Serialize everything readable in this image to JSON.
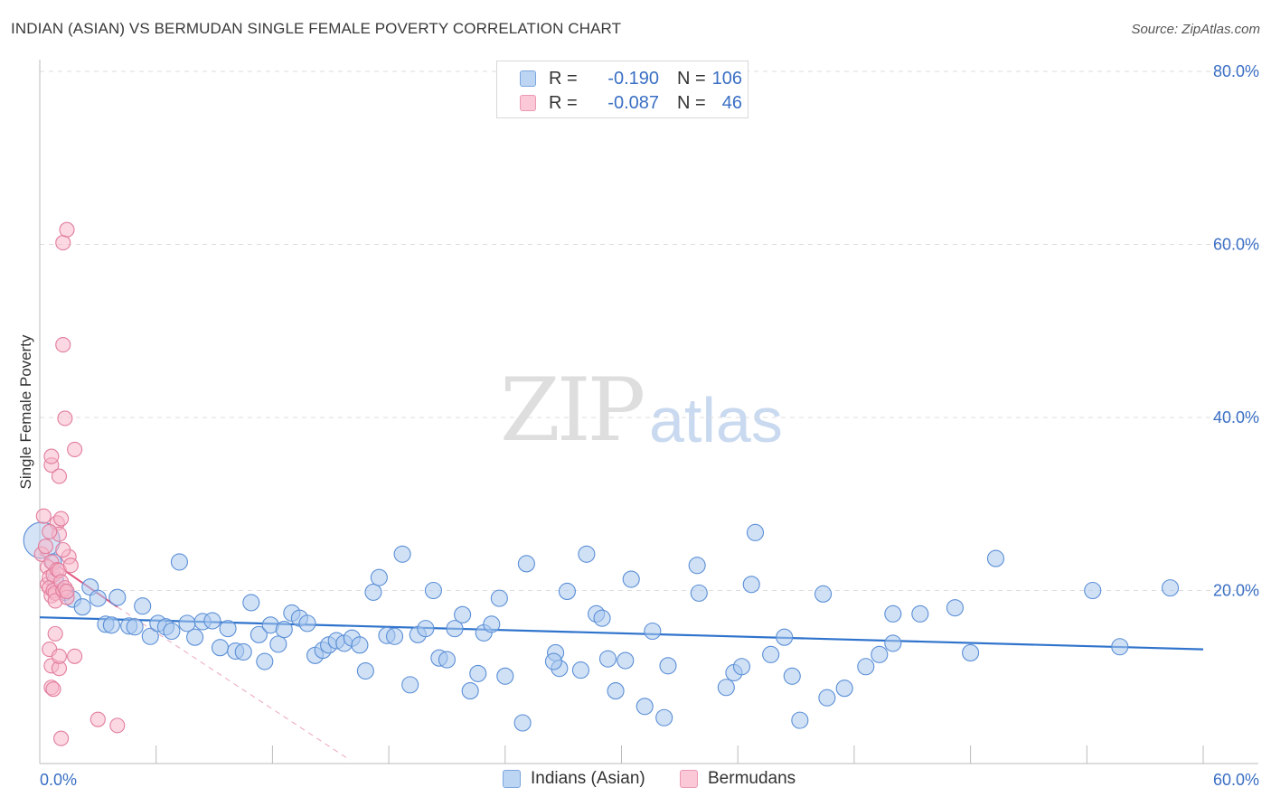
{
  "header": {
    "title": "INDIAN (ASIAN) VS BERMUDAN SINGLE FEMALE POVERTY CORRELATION CHART",
    "source": "Source: ZipAtlas.com"
  },
  "watermark": {
    "zip": "ZIP",
    "atlas": "atlas"
  },
  "legend": {
    "rows": [
      {
        "r_label": "R =",
        "r_value": "-0.190",
        "n_label": "N =",
        "n_value": "106"
      },
      {
        "r_label": "R =",
        "r_value": "-0.087",
        "n_label": "N =",
        "n_value": "46"
      }
    ]
  },
  "colors": {
    "blue_fill": "#aac8ee",
    "blue_stroke": "#5b8fd6",
    "blue_line": "#2f73cc",
    "pink_fill": "#f7b8cb",
    "pink_stroke": "#e27d9d",
    "pink_line": "#e0557e",
    "grid": "#dddddd",
    "axis_text": "#3a6fc4"
  },
  "chart_data": {
    "type": "scatter",
    "title": "INDIAN (ASIAN) VS BERMUDAN SINGLE FEMALE POVERTY CORRELATION CHART",
    "xlabel": "",
    "ylabel": "Single Female Poverty",
    "xlim": [
      0,
      60
    ],
    "ylim": [
      0,
      80
    ],
    "x_tick_labels": [
      "0.0%",
      "60.0%"
    ],
    "y_tick_labels": [
      "20.0%",
      "40.0%",
      "60.0%",
      "80.0%"
    ],
    "y_ticks": [
      20,
      40,
      60,
      80
    ],
    "grid": true,
    "series": [
      {
        "name": "Indians (Asian)",
        "r": -0.19,
        "n": 106,
        "trend": {
          "x": [
            0,
            60
          ],
          "y": [
            16.9,
            13.2
          ]
        },
        "points": [
          [
            0.1,
            25.8
          ],
          [
            0.7,
            23.3
          ],
          [
            0.8,
            21.2
          ],
          [
            1.3,
            19.8
          ],
          [
            1.7,
            19.0
          ],
          [
            2.2,
            18.1
          ],
          [
            2.6,
            20.4
          ],
          [
            3.0,
            19.1
          ],
          [
            3.4,
            16.1
          ],
          [
            3.7,
            16.0
          ],
          [
            4.0,
            19.2
          ],
          [
            4.6,
            15.9
          ],
          [
            4.9,
            15.8
          ],
          [
            5.3,
            18.2
          ],
          [
            5.7,
            14.7
          ],
          [
            6.1,
            16.2
          ],
          [
            6.5,
            15.8
          ],
          [
            6.8,
            15.3
          ],
          [
            7.2,
            23.3
          ],
          [
            7.6,
            16.2
          ],
          [
            8.0,
            14.6
          ],
          [
            8.4,
            16.4
          ],
          [
            8.9,
            16.5
          ],
          [
            9.3,
            13.4
          ],
          [
            9.7,
            15.6
          ],
          [
            10.1,
            13.0
          ],
          [
            10.5,
            12.9
          ],
          [
            10.9,
            18.6
          ],
          [
            11.3,
            14.9
          ],
          [
            11.6,
            11.8
          ],
          [
            11.9,
            16.0
          ],
          [
            12.3,
            13.8
          ],
          [
            12.6,
            15.5
          ],
          [
            13.0,
            17.4
          ],
          [
            13.4,
            16.8
          ],
          [
            13.8,
            16.2
          ],
          [
            14.2,
            12.5
          ],
          [
            14.6,
            13.1
          ],
          [
            14.9,
            13.7
          ],
          [
            15.3,
            14.2
          ],
          [
            15.7,
            13.9
          ],
          [
            16.1,
            14.5
          ],
          [
            16.5,
            13.7
          ],
          [
            16.8,
            10.7
          ],
          [
            17.2,
            19.8
          ],
          [
            17.5,
            21.5
          ],
          [
            17.9,
            14.8
          ],
          [
            18.3,
            14.7
          ],
          [
            18.7,
            24.2
          ],
          [
            19.1,
            9.1
          ],
          [
            19.5,
            14.9
          ],
          [
            19.9,
            15.6
          ],
          [
            20.3,
            20.0
          ],
          [
            20.6,
            12.2
          ],
          [
            21.0,
            12.0
          ],
          [
            21.4,
            15.6
          ],
          [
            21.8,
            17.2
          ],
          [
            22.2,
            8.4
          ],
          [
            22.6,
            10.4
          ],
          [
            22.9,
            15.1
          ],
          [
            23.3,
            16.1
          ],
          [
            23.7,
            19.1
          ],
          [
            24.0,
            10.1
          ],
          [
            24.9,
            4.7
          ],
          [
            25.1,
            23.1
          ],
          [
            26.6,
            12.8
          ],
          [
            26.8,
            11.0
          ],
          [
            27.2,
            19.9
          ],
          [
            27.9,
            10.8
          ],
          [
            28.2,
            24.2
          ],
          [
            28.7,
            17.3
          ],
          [
            29.0,
            16.8
          ],
          [
            29.3,
            12.1
          ],
          [
            29.7,
            8.4
          ],
          [
            30.2,
            11.9
          ],
          [
            30.5,
            21.3
          ],
          [
            31.2,
            6.6
          ],
          [
            31.6,
            15.3
          ],
          [
            32.2,
            5.3
          ],
          [
            32.4,
            11.3
          ],
          [
            33.9,
            22.9
          ],
          [
            34.0,
            19.7
          ],
          [
            35.4,
            8.8
          ],
          [
            35.8,
            10.5
          ],
          [
            36.2,
            11.2
          ],
          [
            36.7,
            20.7
          ],
          [
            36.9,
            26.7
          ],
          [
            37.7,
            12.6
          ],
          [
            38.4,
            14.6
          ],
          [
            38.8,
            10.1
          ],
          [
            39.2,
            5.0
          ],
          [
            40.4,
            19.6
          ],
          [
            40.6,
            7.6
          ],
          [
            41.5,
            8.7
          ],
          [
            42.6,
            11.2
          ],
          [
            43.3,
            12.6
          ],
          [
            44.0,
            13.9
          ],
          [
            44.0,
            17.3
          ],
          [
            45.4,
            17.3
          ],
          [
            47.2,
            18.0
          ],
          [
            48.0,
            12.8
          ],
          [
            49.3,
            23.7
          ],
          [
            54.3,
            20.0
          ],
          [
            55.7,
            13.5
          ],
          [
            58.3,
            20.3
          ],
          [
            26.5,
            11.8
          ]
        ]
      },
      {
        "name": "Bermudans",
        "r": -0.087,
        "n": 46,
        "trend": {
          "x": [
            0,
            4.0
          ],
          "y": [
            24.3,
            18.1
          ]
        },
        "trend_extension": {
          "x": [
            4.0,
            16.0
          ],
          "y": [
            18.1,
            0.4
          ]
        },
        "points": [
          [
            0.1,
            24.2
          ],
          [
            0.2,
            28.6
          ],
          [
            0.3,
            25.1
          ],
          [
            0.4,
            22.7
          ],
          [
            0.4,
            20.7
          ],
          [
            0.5,
            21.5
          ],
          [
            0.5,
            20.3
          ],
          [
            0.6,
            19.4
          ],
          [
            0.6,
            23.3
          ],
          [
            0.7,
            21.8
          ],
          [
            0.7,
            20.0
          ],
          [
            0.8,
            19.7
          ],
          [
            0.8,
            18.8
          ],
          [
            0.9,
            22.4
          ],
          [
            0.9,
            27.8
          ],
          [
            1.0,
            26.5
          ],
          [
            1.0,
            22.3
          ],
          [
            1.1,
            21.0
          ],
          [
            1.2,
            20.0
          ],
          [
            1.3,
            20.3
          ],
          [
            1.4,
            19.2
          ],
          [
            1.5,
            23.9
          ],
          [
            1.6,
            22.9
          ],
          [
            0.5,
            26.8
          ],
          [
            0.6,
            34.5
          ],
          [
            0.6,
            35.5
          ],
          [
            1.0,
            33.2
          ],
          [
            1.1,
            28.3
          ],
          [
            1.2,
            24.7
          ],
          [
            1.2,
            60.2
          ],
          [
            1.4,
            61.7
          ],
          [
            1.2,
            48.4
          ],
          [
            1.3,
            39.9
          ],
          [
            1.8,
            36.3
          ],
          [
            0.5,
            13.2
          ],
          [
            0.6,
            11.3
          ],
          [
            0.8,
            15.0
          ],
          [
            1.0,
            11.0
          ],
          [
            1.0,
            12.4
          ],
          [
            1.8,
            12.4
          ],
          [
            0.6,
            8.8
          ],
          [
            0.7,
            8.6
          ],
          [
            1.1,
            2.9
          ],
          [
            3.0,
            5.1
          ],
          [
            4.0,
            4.4
          ],
          [
            1.4,
            19.9
          ]
        ]
      }
    ]
  },
  "bottom_legend": {
    "items": [
      {
        "label": "Indians (Asian)"
      },
      {
        "label": "Bermudans"
      }
    ]
  }
}
